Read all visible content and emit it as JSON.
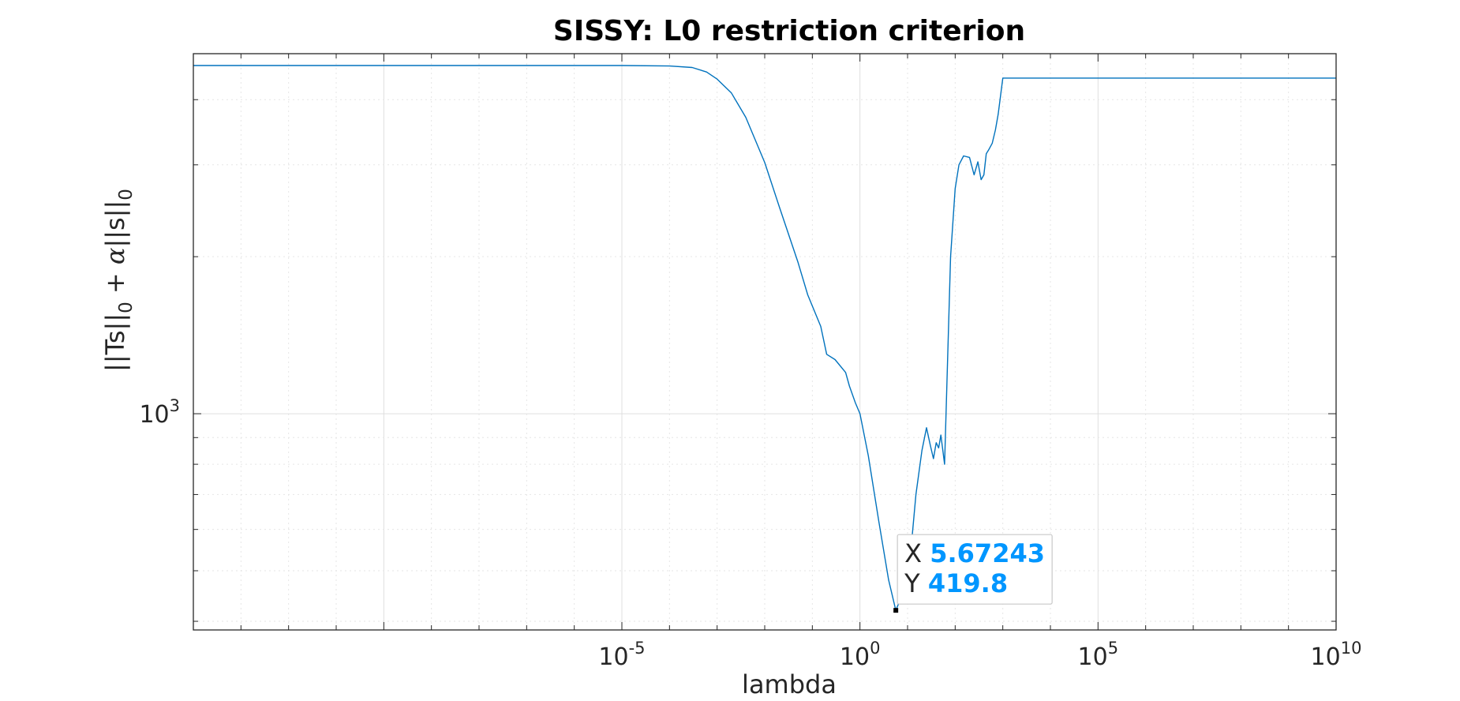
{
  "chart_data": {
    "type": "line",
    "title": "SISSY: L0 restriction criterion",
    "xlabel": "lambda",
    "ylabel": "||Ts||0 + α||s||0",
    "xscale": "log",
    "yscale": "log",
    "xlim": [
      1e-14,
      10000000000.0
    ],
    "ylim": [
      385,
      4900
    ],
    "grid": true,
    "minor_grid": true,
    "colors": {
      "line": "#0072bd",
      "grid": "#dfdfdf",
      "axis": "#262626"
    },
    "x_ticks": [
      {
        "value": 1e-05,
        "base": "10",
        "exp": "-5"
      },
      {
        "value": 1,
        "base": "10",
        "exp": "0"
      },
      {
        "value": 100000.0,
        "base": "10",
        "exp": "5"
      },
      {
        "value": 10000000000.0,
        "base": "10",
        "exp": "10"
      }
    ],
    "y_ticks": [
      {
        "value": 1000,
        "base": "10",
        "exp": "3"
      }
    ],
    "series": [
      {
        "x": [
          1e-14,
          1e-09,
          1e-06,
          1e-05,
          0.0001,
          0.0003,
          0.0006,
          0.001,
          0.002,
          0.004,
          0.01,
          0.02,
          0.05,
          0.08,
          0.15,
          0.2,
          0.3,
          0.5,
          0.6,
          0.8,
          1.0,
          1.5,
          2.5,
          4,
          5.67243,
          7,
          10,
          12,
          15,
          20,
          25,
          30,
          35,
          40,
          45,
          50,
          55,
          60,
          80,
          100,
          120,
          150,
          200,
          250,
          300,
          350,
          400,
          450,
          500,
          600,
          700,
          800,
          1000,
          1200,
          10000000000.0
        ],
        "y": [
          4650,
          4650,
          4650,
          4650,
          4640,
          4610,
          4520,
          4380,
          4120,
          3700,
          3030,
          2500,
          1950,
          1690,
          1470,
          1300,
          1270,
          1200,
          1130,
          1050,
          1000,
          830,
          620,
          480,
          419.8,
          440,
          480,
          560,
          700,
          850,
          940,
          870,
          820,
          880,
          860,
          910,
          850,
          800,
          2000,
          2700,
          3000,
          3120,
          3100,
          2870,
          3040,
          2810,
          2870,
          3150,
          3200,
          3300,
          3500,
          3750,
          4400,
          4400,
          4400
        ]
      }
    ],
    "datatip": {
      "x": 5.67243,
      "y": 419.8,
      "x_label": "X",
      "y_label": "Y",
      "x_text": "5.67243",
      "y_text": "419.8"
    }
  }
}
